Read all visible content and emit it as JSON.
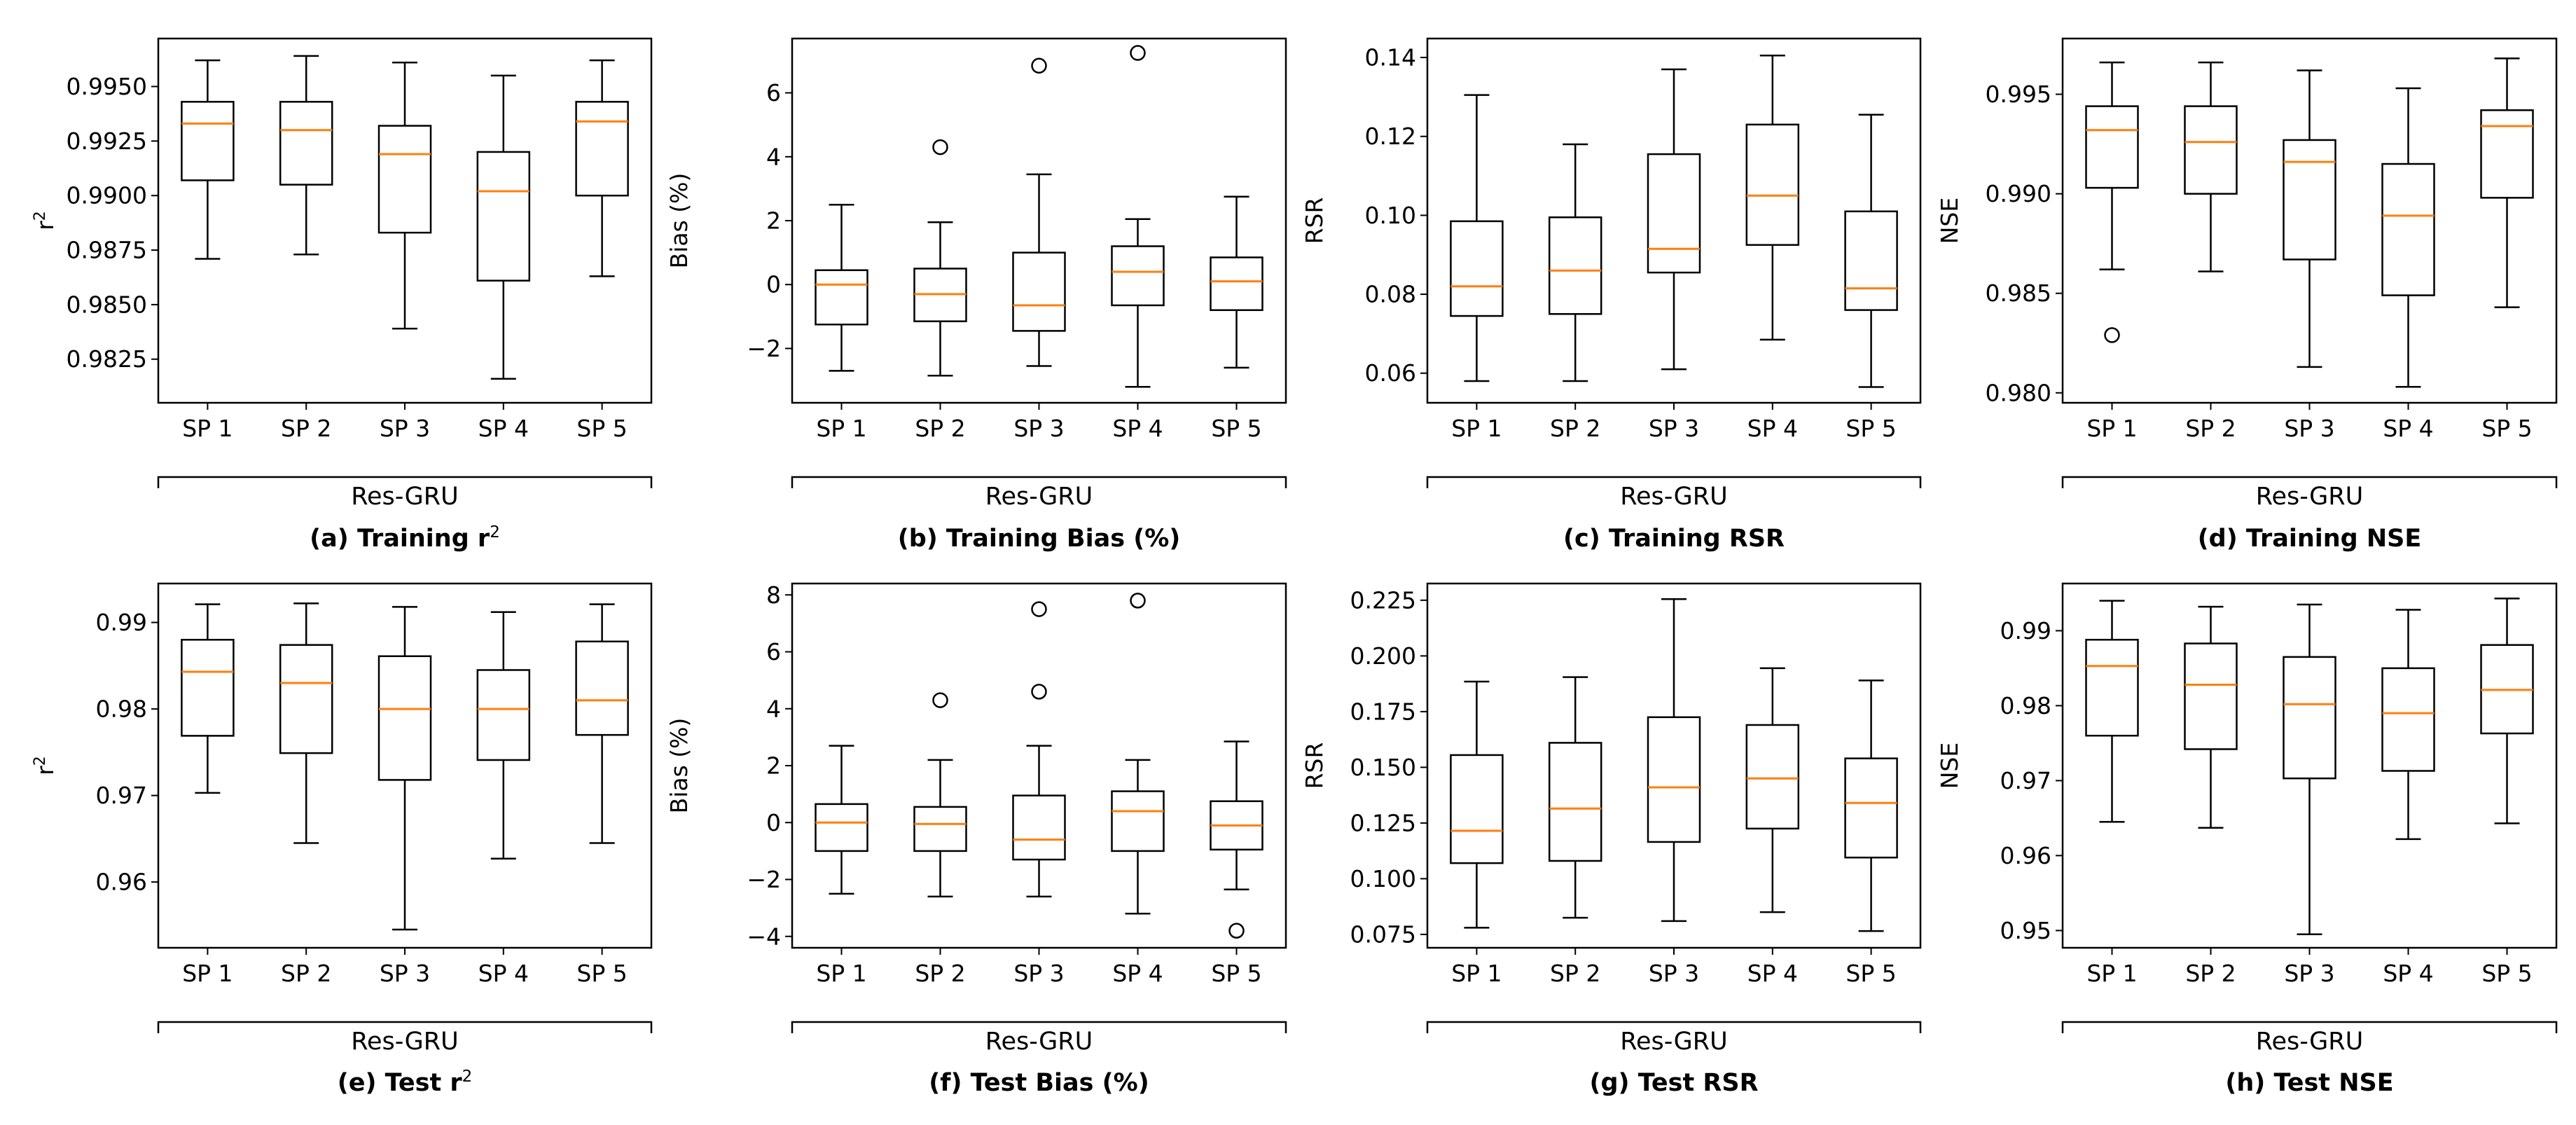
{
  "chart_data": [
    {
      "type": "box",
      "id": "a",
      "caption": "(a) Training r",
      "caption_sup": "2",
      "ylabel": "r",
      "ylabel_sup": "2",
      "group_label": "Res-GRU",
      "categories": [
        "SP 1",
        "SP 2",
        "SP 3",
        "SP 4",
        "SP 5"
      ],
      "ylim": [
        0.9805,
        0.9972
      ],
      "yticks": [
        0.9825,
        0.985,
        0.9875,
        0.99,
        0.9925,
        0.995
      ],
      "ytick_labels": [
        "0.9825",
        "0.9850",
        "0.9875",
        "0.9900",
        "0.9925",
        "0.9950"
      ],
      "boxes": [
        {
          "whislo": 0.9871,
          "q1": 0.9907,
          "med": 0.9933,
          "q3": 0.9943,
          "whishi": 0.9962,
          "fliers": []
        },
        {
          "whislo": 0.9873,
          "q1": 0.9905,
          "med": 0.993,
          "q3": 0.9943,
          "whishi": 0.9964,
          "fliers": []
        },
        {
          "whislo": 0.9839,
          "q1": 0.9883,
          "med": 0.9919,
          "q3": 0.9932,
          "whishi": 0.9961,
          "fliers": []
        },
        {
          "whislo": 0.9816,
          "q1": 0.9861,
          "med": 0.9902,
          "q3": 0.992,
          "whishi": 0.9955,
          "fliers": []
        },
        {
          "whislo": 0.9863,
          "q1": 0.99,
          "med": 0.9934,
          "q3": 0.9943,
          "whishi": 0.9962,
          "fliers": []
        }
      ]
    },
    {
      "type": "box",
      "id": "b",
      "caption": "(b) Training Bias (%)",
      "caption_sup": "",
      "ylabel": "Bias (%)",
      "ylabel_sup": "",
      "group_label": "Res-GRU",
      "categories": [
        "SP 1",
        "SP 2",
        "SP 3",
        "SP 4",
        "SP 5"
      ],
      "ylim": [
        -3.7,
        7.7
      ],
      "yticks": [
        -2,
        0,
        2,
        4,
        6
      ],
      "ytick_labels": [
        "−2",
        "0",
        "2",
        "4",
        "6"
      ],
      "boxes": [
        {
          "whislo": -2.7,
          "q1": -1.25,
          "med": 0.0,
          "q3": 0.45,
          "whishi": 2.5,
          "fliers": []
        },
        {
          "whislo": -2.85,
          "q1": -1.15,
          "med": -0.3,
          "q3": 0.5,
          "whishi": 1.95,
          "fliers": [
            4.3
          ]
        },
        {
          "whislo": -2.55,
          "q1": -1.45,
          "med": -0.65,
          "q3": 1.0,
          "whishi": 3.45,
          "fliers": [
            6.85
          ]
        },
        {
          "whislo": -3.2,
          "q1": -0.65,
          "med": 0.4,
          "q3": 1.2,
          "whishi": 2.05,
          "fliers": [
            7.25
          ]
        },
        {
          "whislo": -2.6,
          "q1": -0.8,
          "med": 0.1,
          "q3": 0.85,
          "whishi": 2.75,
          "fliers": []
        }
      ]
    },
    {
      "type": "box",
      "id": "c",
      "caption": "(c) Training RSR",
      "caption_sup": "",
      "ylabel": "RSR",
      "ylabel_sup": "",
      "group_label": "Res-GRU",
      "categories": [
        "SP 1",
        "SP 2",
        "SP 3",
        "SP 4",
        "SP 5"
      ],
      "ylim": [
        0.0525,
        0.1448
      ],
      "yticks": [
        0.06,
        0.08,
        0.1,
        0.12,
        0.14
      ],
      "ytick_labels": [
        "0.06",
        "0.08",
        "0.10",
        "0.12",
        "0.14"
      ],
      "boxes": [
        {
          "whislo": 0.058,
          "q1": 0.0745,
          "med": 0.082,
          "q3": 0.0985,
          "whishi": 0.1305,
          "fliers": []
        },
        {
          "whislo": 0.058,
          "q1": 0.075,
          "med": 0.086,
          "q3": 0.0995,
          "whishi": 0.118,
          "fliers": []
        },
        {
          "whislo": 0.061,
          "q1": 0.0855,
          "med": 0.0915,
          "q3": 0.1155,
          "whishi": 0.137,
          "fliers": []
        },
        {
          "whislo": 0.0685,
          "q1": 0.0925,
          "med": 0.105,
          "q3": 0.123,
          "whishi": 0.1405,
          "fliers": []
        },
        {
          "whislo": 0.0565,
          "q1": 0.076,
          "med": 0.0815,
          "q3": 0.101,
          "whishi": 0.1255,
          "fliers": []
        }
      ]
    },
    {
      "type": "box",
      "id": "d",
      "caption": "(d) Training NSE",
      "caption_sup": "",
      "ylabel": "NSE",
      "ylabel_sup": "",
      "group_label": "Res-GRU",
      "categories": [
        "SP 1",
        "SP 2",
        "SP 3",
        "SP 4",
        "SP 5"
      ],
      "ylim": [
        0.9795,
        0.9978
      ],
      "yticks": [
        0.98,
        0.985,
        0.99,
        0.995
      ],
      "ytick_labels": [
        "0.980",
        "0.985",
        "0.990",
        "0.995"
      ],
      "boxes": [
        {
          "whislo": 0.9862,
          "q1": 0.9903,
          "med": 0.9932,
          "q3": 0.9944,
          "whishi": 0.9966,
          "fliers": [
            0.9829
          ]
        },
        {
          "whislo": 0.9861,
          "q1": 0.99,
          "med": 0.9926,
          "q3": 0.9944,
          "whishi": 0.9966,
          "fliers": []
        },
        {
          "whislo": 0.9813,
          "q1": 0.9867,
          "med": 0.9916,
          "q3": 0.9927,
          "whishi": 0.9962,
          "fliers": []
        },
        {
          "whislo": 0.9803,
          "q1": 0.9849,
          "med": 0.9889,
          "q3": 0.9915,
          "whishi": 0.9953,
          "fliers": []
        },
        {
          "whislo": 0.9843,
          "q1": 0.9898,
          "med": 0.9934,
          "q3": 0.9942,
          "whishi": 0.9968,
          "fliers": []
        }
      ]
    },
    {
      "type": "box",
      "id": "e",
      "caption": "(e) Test r",
      "caption_sup": "2",
      "ylabel": "r",
      "ylabel_sup": "2",
      "group_label": "Res-GRU",
      "categories": [
        "SP 1",
        "SP 2",
        "SP 3",
        "SP 4",
        "SP 5"
      ],
      "ylim": [
        0.9524,
        0.9945
      ],
      "yticks": [
        0.96,
        0.97,
        0.98,
        0.99
      ],
      "ytick_labels": [
        "0.96",
        "0.97",
        "0.98",
        "0.99"
      ],
      "boxes": [
        {
          "whislo": 0.9703,
          "q1": 0.9769,
          "med": 0.9843,
          "q3": 0.988,
          "whishi": 0.9921,
          "fliers": []
        },
        {
          "whislo": 0.9645,
          "q1": 0.9749,
          "med": 0.983,
          "q3": 0.9874,
          "whishi": 0.9922,
          "fliers": []
        },
        {
          "whislo": 0.9545,
          "q1": 0.9718,
          "med": 0.98,
          "q3": 0.9861,
          "whishi": 0.9918,
          "fliers": []
        },
        {
          "whislo": 0.9627,
          "q1": 0.9741,
          "med": 0.98,
          "q3": 0.9845,
          "whishi": 0.9912,
          "fliers": []
        },
        {
          "whislo": 0.9645,
          "q1": 0.977,
          "med": 0.981,
          "q3": 0.9878,
          "whishi": 0.9921,
          "fliers": []
        }
      ]
    },
    {
      "type": "box",
      "id": "f",
      "caption": "(f) Test Bias (%)",
      "caption_sup": "",
      "ylabel": "Bias (%)",
      "ylabel_sup": "",
      "group_label": "Res-GRU",
      "categories": [
        "SP 1",
        "SP 2",
        "SP 3",
        "SP 4",
        "SP 5"
      ],
      "ylim": [
        -4.4,
        8.4
      ],
      "yticks": [
        -4,
        -2,
        0,
        2,
        4,
        6,
        8
      ],
      "ytick_labels": [
        "−4",
        "−2",
        "0",
        "2",
        "4",
        "6",
        "8"
      ],
      "boxes": [
        {
          "whislo": -2.5,
          "q1": -1.0,
          "med": 0.0,
          "q3": 0.65,
          "whishi": 2.7,
          "fliers": []
        },
        {
          "whislo": -2.6,
          "q1": -1.0,
          "med": -0.05,
          "q3": 0.55,
          "whishi": 2.2,
          "fliers": [
            4.3
          ]
        },
        {
          "whislo": -2.6,
          "q1": -1.3,
          "med": -0.6,
          "q3": 0.95,
          "whishi": 2.7,
          "fliers": [
            4.6,
            7.5
          ]
        },
        {
          "whislo": -3.2,
          "q1": -1.0,
          "med": 0.4,
          "q3": 1.1,
          "whishi": 2.2,
          "fliers": [
            7.8
          ]
        },
        {
          "whislo": -2.35,
          "q1": -0.95,
          "med": -0.1,
          "q3": 0.75,
          "whishi": 2.85,
          "fliers": [
            -3.8
          ]
        }
      ]
    },
    {
      "type": "box",
      "id": "g",
      "caption": "(g) Test RSR",
      "caption_sup": "",
      "ylabel": "RSR",
      "ylabel_sup": "",
      "group_label": "Res-GRU",
      "categories": [
        "SP 1",
        "SP 2",
        "SP 3",
        "SP 4",
        "SP 5"
      ],
      "ylim": [
        0.069,
        0.2325
      ],
      "yticks": [
        0.075,
        0.1,
        0.125,
        0.15,
        0.175,
        0.2,
        0.225
      ],
      "ytick_labels": [
        "0.075",
        "0.100",
        "0.125",
        "0.150",
        "0.175",
        "0.200",
        "0.225"
      ],
      "boxes": [
        {
          "whislo": 0.078,
          "q1": 0.107,
          "med": 0.1215,
          "q3": 0.1555,
          "whishi": 0.1885,
          "fliers": []
        },
        {
          "whislo": 0.0825,
          "q1": 0.108,
          "med": 0.1315,
          "q3": 0.161,
          "whishi": 0.1905,
          "fliers": []
        },
        {
          "whislo": 0.081,
          "q1": 0.1165,
          "med": 0.141,
          "q3": 0.1725,
          "whishi": 0.2255,
          "fliers": []
        },
        {
          "whislo": 0.085,
          "q1": 0.1225,
          "med": 0.145,
          "q3": 0.169,
          "whishi": 0.1945,
          "fliers": []
        },
        {
          "whislo": 0.0765,
          "q1": 0.1095,
          "med": 0.134,
          "q3": 0.154,
          "whishi": 0.189,
          "fliers": []
        }
      ]
    },
    {
      "type": "box",
      "id": "h",
      "caption": "(h) Test NSE",
      "caption_sup": "",
      "ylabel": "NSE",
      "ylabel_sup": "",
      "group_label": "Res-GRU",
      "categories": [
        "SP 1",
        "SP 2",
        "SP 3",
        "SP 4",
        "SP 5"
      ],
      "ylim": [
        0.9477,
        0.9963
      ],
      "yticks": [
        0.95,
        0.96,
        0.97,
        0.98,
        0.99
      ],
      "ytick_labels": [
        "0.95",
        "0.96",
        "0.97",
        "0.98",
        "0.99"
      ],
      "boxes": [
        {
          "whislo": 0.9645,
          "q1": 0.976,
          "med": 0.9853,
          "q3": 0.9888,
          "whishi": 0.994,
          "fliers": []
        },
        {
          "whislo": 0.9637,
          "q1": 0.9742,
          "med": 0.9828,
          "q3": 0.9883,
          "whishi": 0.9932,
          "fliers": []
        },
        {
          "whislo": 0.9495,
          "q1": 0.9703,
          "med": 0.9802,
          "q3": 0.9865,
          "whishi": 0.9935,
          "fliers": []
        },
        {
          "whislo": 0.9622,
          "q1": 0.9713,
          "med": 0.979,
          "q3": 0.985,
          "whishi": 0.9928,
          "fliers": []
        },
        {
          "whislo": 0.9643,
          "q1": 0.9763,
          "med": 0.9821,
          "q3": 0.9881,
          "whishi": 0.9943,
          "fliers": []
        }
      ]
    }
  ],
  "colors": {
    "median": "#ff7f0e",
    "stroke": "#000000",
    "background": "#ffffff"
  }
}
